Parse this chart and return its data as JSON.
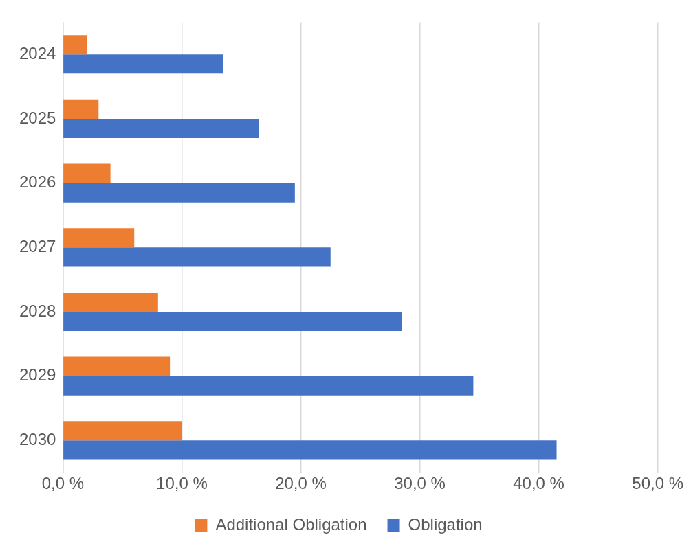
{
  "chart_data": {
    "type": "bar",
    "orientation": "horizontal",
    "categories": [
      "2024",
      "2025",
      "2026",
      "2027",
      "2028",
      "2029",
      "2030"
    ],
    "series": [
      {
        "name": "Additional Obligation",
        "color": "#ed7d31",
        "values": [
          2.0,
          3.0,
          4.0,
          6.0,
          8.0,
          9.0,
          10.0
        ]
      },
      {
        "name": "Obligation",
        "color": "#4472c4",
        "values": [
          13.5,
          16.5,
          19.5,
          22.5,
          28.5,
          34.5,
          41.5
        ]
      }
    ],
    "xlim": [
      0,
      50
    ],
    "xticks": [
      {
        "value": 0,
        "label": "0,0 %"
      },
      {
        "value": 10,
        "label": "10,0 %"
      },
      {
        "value": 20,
        "label": "20,0 %"
      },
      {
        "value": 30,
        "label": "30,0 %"
      },
      {
        "value": 40,
        "label": "40,0 %"
      },
      {
        "value": 50,
        "label": "50,0 %"
      }
    ],
    "grid": "x",
    "legend": "bottom"
  }
}
